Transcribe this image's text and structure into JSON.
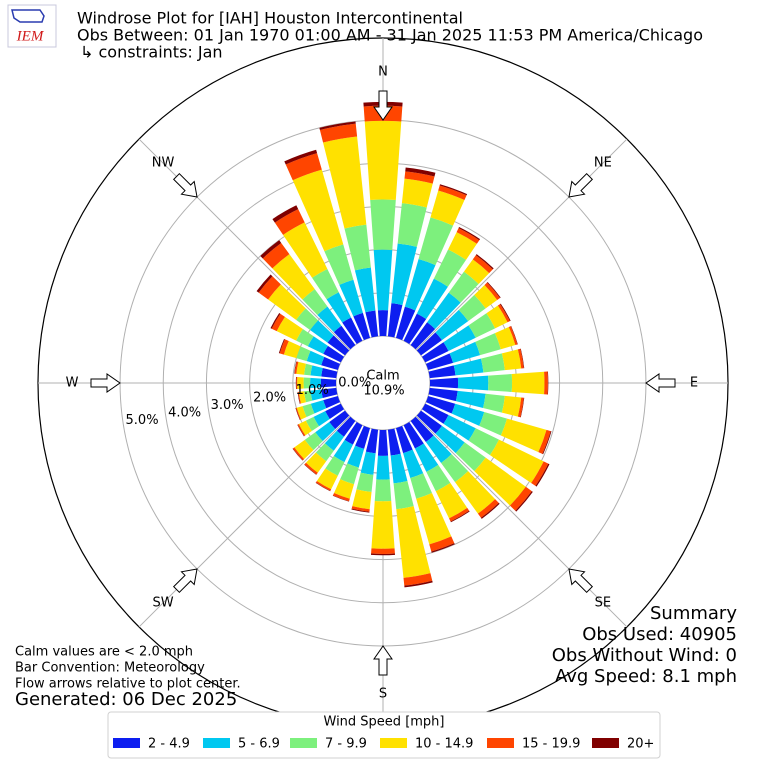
{
  "chart_data": {
    "type": "windrose",
    "logo": "IEM",
    "title": "Windrose Plot for [IAH] Houston Intercontinental",
    "subtitle": "Obs Between: 01 Jan 1970 01:00 AM - 31 Jan 2025 11:53 PM America/Chicago",
    "constraints": "↳ constraints: Jan",
    "x": [
      0,
      10,
      20,
      30,
      40,
      50,
      60,
      70,
      80,
      90,
      100,
      110,
      120,
      130,
      140,
      150,
      160,
      170,
      180,
      190,
      200,
      210,
      220,
      230,
      240,
      250,
      260,
      270,
      280,
      290,
      300,
      310,
      320,
      330,
      340,
      350
    ],
    "xticks": [
      {
        "value": 0,
        "label": "N"
      },
      {
        "value": 45,
        "label": "NE"
      },
      {
        "value": 90,
        "label": "E"
      },
      {
        "value": 135,
        "label": "SE"
      },
      {
        "value": 180,
        "label": "S"
      },
      {
        "value": 225,
        "label": "SW"
      },
      {
        "value": 270,
        "label": "W"
      },
      {
        "value": 315,
        "label": "NW"
      }
    ],
    "ylim": [
      0,
      6.9
    ],
    "yticks": [
      {
        "value": 0,
        "label": "0.0%"
      },
      {
        "value": 1,
        "label": "1.0%"
      },
      {
        "value": 2,
        "label": "2.0%"
      },
      {
        "value": 3,
        "label": "3.0%"
      },
      {
        "value": 4,
        "label": "4.0%"
      },
      {
        "value": 5,
        "label": "5.0%"
      }
    ],
    "calm": {
      "name": "Calm",
      "value": 10.9,
      "value_label": "10.9%"
    },
    "legend_title": "Wind Speed [mph]",
    "series": [
      {
        "name": "2 - 4.9",
        "color": "#0d1ef0",
        "values": [
          0.6,
          0.77,
          0.75,
          0.7,
          0.65,
          0.6,
          0.6,
          0.6,
          0.6,
          0.65,
          0.65,
          0.65,
          0.6,
          0.6,
          0.6,
          0.6,
          0.6,
          0.6,
          0.6,
          0.55,
          0.5,
          0.5,
          0.45,
          0.45,
          0.4,
          0.35,
          0.35,
          0.35,
          0.35,
          0.4,
          0.45,
          0.5,
          0.55,
          0.6,
          0.6,
          0.6
        ]
      },
      {
        "name": "5 - 6.9",
        "color": "#00c8f0",
        "values": [
          1.4,
          1.39,
          1.15,
          0.9,
          0.85,
          0.75,
          0.7,
          0.65,
          0.65,
          0.7,
          0.65,
          0.7,
          0.7,
          0.65,
          0.6,
          0.6,
          0.6,
          0.65,
          0.55,
          0.5,
          0.45,
          0.45,
          0.4,
          0.4,
          0.3,
          0.3,
          0.25,
          0.25,
          0.25,
          0.35,
          0.4,
          0.5,
          0.55,
          0.65,
          0.8,
          1.0
        ]
      },
      {
        "name": "7 - 9.9",
        "color": "#7df07d",
        "values": [
          1.16,
          0.94,
          1.0,
          0.75,
          0.6,
          0.5,
          0.5,
          0.5,
          0.5,
          0.55,
          0.45,
          0.55,
          0.6,
          0.6,
          0.55,
          0.5,
          0.5,
          0.6,
          0.5,
          0.4,
          0.4,
          0.35,
          0.3,
          0.3,
          0.2,
          0.2,
          0.15,
          0.15,
          0.15,
          0.25,
          0.3,
          0.4,
          0.5,
          0.6,
          0.85,
          1.0
        ]
      },
      {
        "name": "10 - 14.9",
        "color": "#ffe100",
        "values": [
          1.82,
          0.57,
          0.65,
          0.45,
          0.35,
          0.33,
          0.32,
          0.35,
          0.38,
          0.75,
          0.38,
          0.95,
          1.15,
          1.15,
          0.9,
          0.7,
          1.1,
          1.6,
          1.1,
          0.4,
          0.35,
          0.35,
          0.33,
          0.3,
          0.18,
          0.14,
          0.12,
          0.15,
          0.18,
          0.3,
          0.5,
          0.8,
          1.0,
          1.2,
          1.8,
          2.05
        ]
      },
      {
        "name": "15 - 19.9",
        "color": "#ff4500",
        "values": [
          0.35,
          0.17,
          0.12,
          0.1,
          0.12,
          0.08,
          0.06,
          0.05,
          0.06,
          0.08,
          0.06,
          0.1,
          0.12,
          0.17,
          0.12,
          0.08,
          0.17,
          0.18,
          0.12,
          0.06,
          0.06,
          0.04,
          0.05,
          0.04,
          0.03,
          0.02,
          0.02,
          0.02,
          0.04,
          0.1,
          0.13,
          0.27,
          0.32,
          0.34,
          0.4,
          0.3
        ]
      },
      {
        "name": "20+",
        "color": "#800000",
        "values": [
          0.09,
          0.09,
          0.03,
          0.03,
          0.03,
          0.02,
          0.02,
          0.01,
          0.01,
          0.01,
          0.01,
          0.02,
          0.03,
          0.03,
          0.03,
          0.02,
          0.03,
          0.04,
          0.03,
          0.02,
          0.01,
          0.01,
          0.01,
          0.01,
          0.01,
          0.01,
          0.01,
          0.01,
          0.01,
          0.02,
          0.03,
          0.06,
          0.08,
          0.1,
          0.08,
          0.05
        ]
      }
    ],
    "summary": {
      "title": "Summary",
      "lines": [
        "Obs Used: 40905",
        "Obs Without Wind: 0",
        "Avg Speed: 8.1 mph"
      ]
    },
    "notes": [
      "Calm values are < 2.0 mph",
      "Bar Convention: Meteorology",
      "Flow arrows relative to plot center."
    ],
    "generated": "Generated: 06 Dec 2025"
  }
}
